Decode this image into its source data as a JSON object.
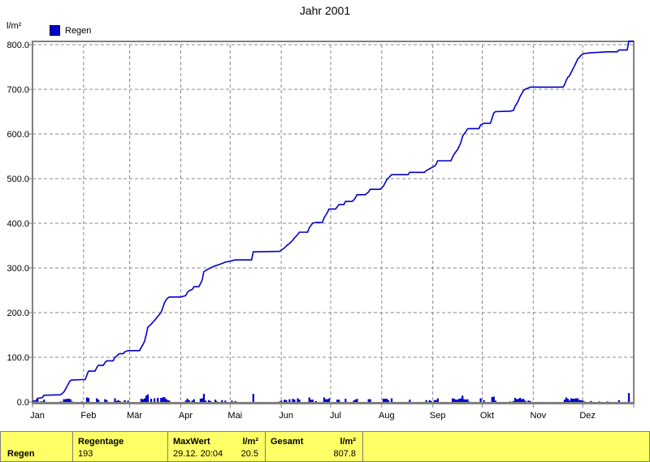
{
  "title": "Jahr 2001",
  "y_axis_unit": "l/m²",
  "legend": {
    "label": "Regen"
  },
  "colors": {
    "series_blue": "#0000CC",
    "grid_gray": "#8a8a8a",
    "frame_gray": "#808080",
    "table_yellow": "#FFFF66"
  },
  "chart_data": {
    "type": "line",
    "title": "Jahr 2001",
    "ylabel": "l/m²",
    "ylim": [
      0,
      800
    ],
    "grid": true,
    "legend_position": "top-left",
    "y_tick_values": [
      0,
      100,
      200,
      300,
      400,
      500,
      600,
      700,
      800
    ],
    "y_tick_labels": [
      "0.0",
      "100.0",
      "200.0",
      "300.0",
      "400.0",
      "500.0",
      "600.0",
      "700.0",
      "800.0"
    ],
    "x_tick_labels": [
      "Jan",
      "Feb",
      "Mär",
      "Apr",
      "Mai",
      "Jun",
      "Jul",
      "Aug",
      "Sep",
      "Okt",
      "Nov",
      "Dez"
    ],
    "month_start_days": [
      0,
      31,
      59,
      90,
      120,
      151,
      181,
      212,
      243,
      273,
      304,
      334
    ],
    "days_in_year": 365,
    "monthly_cumulative_at_month_start": [
      0,
      50,
      115,
      235,
      318,
      336,
      432,
      476,
      524,
      621,
      705,
      779
    ],
    "year_total": 807.8,
    "series": [
      {
        "name": "Regen",
        "style": "cumulative-line-with-daily-bars",
        "cumulative_points": [
          [
            0,
            2
          ],
          [
            2,
            2
          ],
          [
            3,
            8
          ],
          [
            5,
            9
          ],
          [
            6,
            10
          ],
          [
            7,
            15
          ],
          [
            17,
            16
          ],
          [
            19,
            22
          ],
          [
            20,
            28
          ],
          [
            21,
            35
          ],
          [
            22,
            42
          ],
          [
            23,
            48
          ],
          [
            24,
            49
          ],
          [
            30,
            50
          ],
          [
            32,
            50
          ],
          [
            33,
            60
          ],
          [
            34,
            69
          ],
          [
            38,
            69
          ],
          [
            39,
            77
          ],
          [
            40,
            82
          ],
          [
            43,
            82
          ],
          [
            44,
            88
          ],
          [
            45,
            92
          ],
          [
            49,
            92
          ],
          [
            50,
            100
          ],
          [
            51,
            102
          ],
          [
            52,
            106
          ],
          [
            53,
            108
          ],
          [
            55,
            108
          ],
          [
            56,
            112
          ],
          [
            58,
            115
          ],
          [
            65,
            115
          ],
          [
            66,
            122
          ],
          [
            67,
            128
          ],
          [
            68,
            136
          ],
          [
            69,
            150
          ],
          [
            70,
            167
          ],
          [
            72,
            174
          ],
          [
            74,
            182
          ],
          [
            76,
            191
          ],
          [
            78,
            200
          ],
          [
            79,
            210
          ],
          [
            80,
            221
          ],
          [
            81,
            228
          ],
          [
            82,
            232
          ],
          [
            83,
            235
          ],
          [
            90,
            235
          ],
          [
            93,
            238
          ],
          [
            94,
            245
          ],
          [
            95,
            249
          ],
          [
            97,
            252
          ],
          [
            98,
            258
          ],
          [
            101,
            258
          ],
          [
            102,
            265
          ],
          [
            103,
            273
          ],
          [
            104,
            291
          ],
          [
            105,
            294
          ],
          [
            107,
            298
          ],
          [
            108,
            300
          ],
          [
            111,
            305
          ],
          [
            112,
            306
          ],
          [
            115,
            310
          ],
          [
            117,
            313
          ],
          [
            121,
            316
          ],
          [
            123,
            318
          ],
          [
            133,
            318
          ],
          [
            134,
            336
          ],
          [
            150,
            337
          ],
          [
            151,
            340
          ],
          [
            153,
            345
          ],
          [
            154,
            349
          ],
          [
            156,
            355
          ],
          [
            158,
            362
          ],
          [
            159,
            367
          ],
          [
            161,
            375
          ],
          [
            162,
            380
          ],
          [
            167,
            380
          ],
          [
            168,
            390
          ],
          [
            169,
            395
          ],
          [
            170,
            400
          ],
          [
            172,
            402
          ],
          [
            176,
            402
          ],
          [
            177,
            412
          ],
          [
            178,
            418
          ],
          [
            179,
            424
          ],
          [
            180,
            432
          ],
          [
            184,
            432
          ],
          [
            185,
            437
          ],
          [
            186,
            442
          ],
          [
            189,
            442
          ],
          [
            190,
            449
          ],
          [
            194,
            449
          ],
          [
            195,
            452
          ],
          [
            196,
            457
          ],
          [
            197,
            464
          ],
          [
            202,
            464
          ],
          [
            204,
            470
          ],
          [
            205,
            476
          ],
          [
            211,
            476
          ],
          [
            213,
            483
          ],
          [
            214,
            490
          ],
          [
            215,
            497
          ],
          [
            216,
            501
          ],
          [
            218,
            509
          ],
          [
            228,
            509
          ],
          [
            229,
            514
          ],
          [
            238,
            514
          ],
          [
            239,
            518
          ],
          [
            241,
            522
          ],
          [
            242,
            524
          ],
          [
            244,
            528
          ],
          [
            245,
            532
          ],
          [
            246,
            540
          ],
          [
            254,
            540
          ],
          [
            255,
            548
          ],
          [
            256,
            555
          ],
          [
            257,
            560
          ],
          [
            258,
            565
          ],
          [
            259,
            572
          ],
          [
            260,
            580
          ],
          [
            261,
            594
          ],
          [
            262,
            600
          ],
          [
            263,
            605
          ],
          [
            264,
            611
          ],
          [
            265,
            612
          ],
          [
            271,
            612
          ],
          [
            272,
            620
          ],
          [
            274,
            624
          ],
          [
            278,
            624
          ],
          [
            279,
            635
          ],
          [
            280,
            647
          ],
          [
            281,
            650
          ],
          [
            290,
            651
          ],
          [
            292,
            653
          ],
          [
            293,
            662
          ],
          [
            294,
            668
          ],
          [
            295,
            675
          ],
          [
            296,
            684
          ],
          [
            297,
            690
          ],
          [
            298,
            697
          ],
          [
            299,
            700
          ],
          [
            301,
            703
          ],
          [
            302,
            705
          ],
          [
            322,
            705
          ],
          [
            323,
            710
          ],
          [
            324,
            720
          ],
          [
            325,
            727
          ],
          [
            326,
            730
          ],
          [
            327,
            738
          ],
          [
            328,
            745
          ],
          [
            329,
            752
          ],
          [
            330,
            760
          ],
          [
            331,
            768
          ],
          [
            332,
            772
          ],
          [
            333,
            776
          ],
          [
            334,
            779
          ],
          [
            335,
            780
          ],
          [
            339,
            782
          ],
          [
            344,
            783
          ],
          [
            349,
            784
          ],
          [
            355,
            784
          ],
          [
            356,
            788
          ],
          [
            361,
            788
          ],
          [
            362,
            807.8
          ],
          [
            365,
            807.8
          ]
        ]
      }
    ]
  },
  "summary_table": {
    "row_label": "Regen",
    "regentage": {
      "header": "Regentage",
      "value": "193"
    },
    "maxwert": {
      "header": "MaxWert",
      "unit": "l/m²",
      "datetime": "29.12.  20:04",
      "value": "20.5"
    },
    "gesamt": {
      "header": "Gesamt",
      "unit": "l/m²",
      "value": "807.8"
    }
  }
}
